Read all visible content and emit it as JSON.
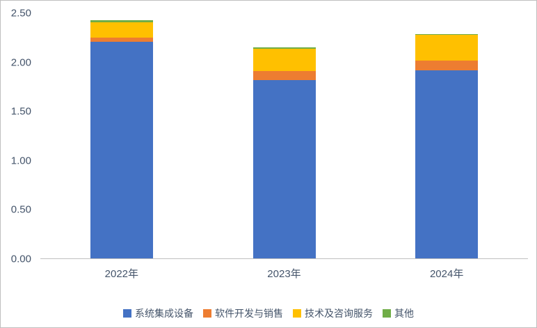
{
  "chart_data": {
    "type": "bar",
    "stacked": true,
    "title": "",
    "xlabel": "",
    "ylabel": "",
    "categories": [
      "2022年",
      "2023年",
      "2024年"
    ],
    "series": [
      {
        "name": "系统集成设备",
        "color": "#4472C4",
        "values": [
          2.21,
          1.82,
          1.92
        ]
      },
      {
        "name": "软件开发与销售",
        "color": "#ED7D31",
        "values": [
          0.04,
          0.09,
          0.1
        ]
      },
      {
        "name": "技术及咨询服务",
        "color": "#FFC000",
        "values": [
          0.16,
          0.23,
          0.26
        ]
      },
      {
        "name": "其他",
        "color": "#70AD47",
        "values": [
          0.02,
          0.01,
          0.01
        ]
      }
    ],
    "ylim": [
      0,
      2.5
    ],
    "yticks": [
      0.0,
      0.5,
      1.0,
      1.5,
      2.0,
      2.5
    ],
    "ytick_labels": [
      "0.00",
      "0.50",
      "1.00",
      "1.50",
      "2.00",
      "2.50"
    ],
    "grid": false,
    "legend_position": "bottom"
  },
  "style": {
    "text_color": "#44546a",
    "axis_line_color": "#bfbfbf",
    "background": "#ffffff"
  }
}
